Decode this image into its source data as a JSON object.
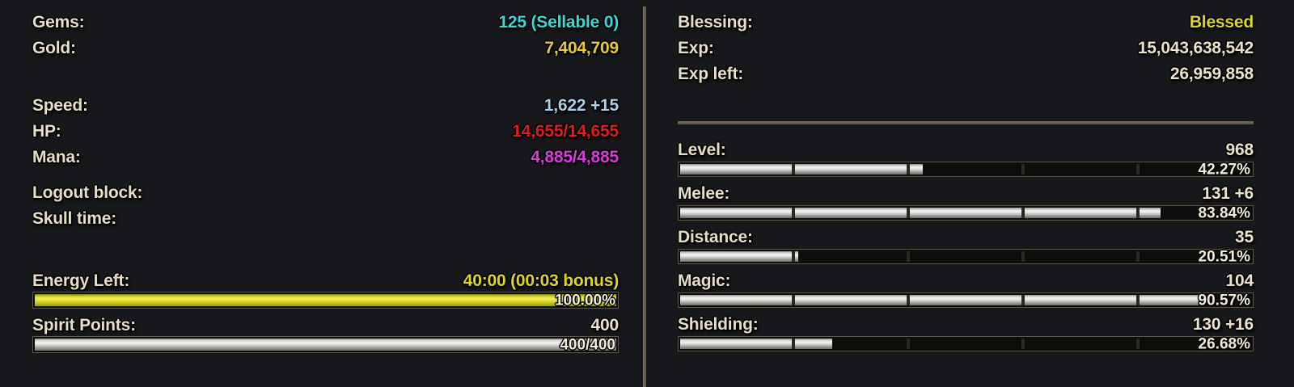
{
  "colors": {
    "background": "#17181b",
    "label_cream": "#e8dec6",
    "value_cream": "#ece2cc",
    "gems_cyan": "#3bd8d8",
    "gold_yellow": "#e9c83e",
    "speed_blue": "#a9cfe9",
    "hp_red": "#db1f1f",
    "mana_magenta": "#d93ad9",
    "energy_yellow": "#ded42a",
    "divider_brown": "#6d6255",
    "bar_metal": "#dcdcdc",
    "bar_energy": "#d8d82e"
  },
  "left_panel": {
    "currency_rows": [
      {
        "label": "Gems:",
        "value": "125 (Sellable 0)",
        "value_class": "txt value c-cyan"
      },
      {
        "label": "Gold:",
        "value": "7,404,709",
        "value_class": "txt value c-gold"
      }
    ],
    "vitals_rows": [
      {
        "label": "Speed:",
        "value": "1,622 +15",
        "value_class": "txt value c-blue"
      },
      {
        "label": "HP:",
        "value": "14,655/14,655",
        "value_class": "txt value c-red"
      },
      {
        "label": "Mana:",
        "value": "4,885/4,885",
        "value_class": "txt value c-magenta"
      }
    ],
    "status_rows": [
      {
        "label": "Logout block:",
        "value": "",
        "value_class": "txt value"
      },
      {
        "label": "Skull time:",
        "value": "",
        "value_class": "txt value"
      }
    ],
    "energy": {
      "label": "Energy Left:",
      "value": "40:00 (00:03 bonus)",
      "percent": 100,
      "bar_text": "100.00%"
    },
    "spirit": {
      "label": "Spirit Points:",
      "value": "400",
      "percent": 100,
      "bar_text": "400/400"
    }
  },
  "right_panel": {
    "info_rows": [
      {
        "label": "Blessing:",
        "value": "Blessed",
        "value_class": "txt value c-yellow"
      },
      {
        "label": "Exp:",
        "value": "15,043,638,542",
        "value_class": "txt value"
      },
      {
        "label": "Exp left:",
        "value": "26,959,858",
        "value_class": "txt value"
      }
    ],
    "skills": [
      {
        "label": "Level:",
        "value": "968",
        "percent": 42.27,
        "bar_text": "42.27%"
      },
      {
        "label": "Melee:",
        "value": "131 +6",
        "percent": 83.84,
        "bar_text": "83.84%"
      },
      {
        "label": "Distance:",
        "value": "35",
        "percent": 20.51,
        "bar_text": "20.51%"
      },
      {
        "label": "Magic:",
        "value": "104",
        "percent": 90.57,
        "bar_text": "90.57%"
      },
      {
        "label": "Shielding:",
        "value": "130 +16",
        "percent": 26.68,
        "bar_text": "26.68%"
      }
    ]
  }
}
